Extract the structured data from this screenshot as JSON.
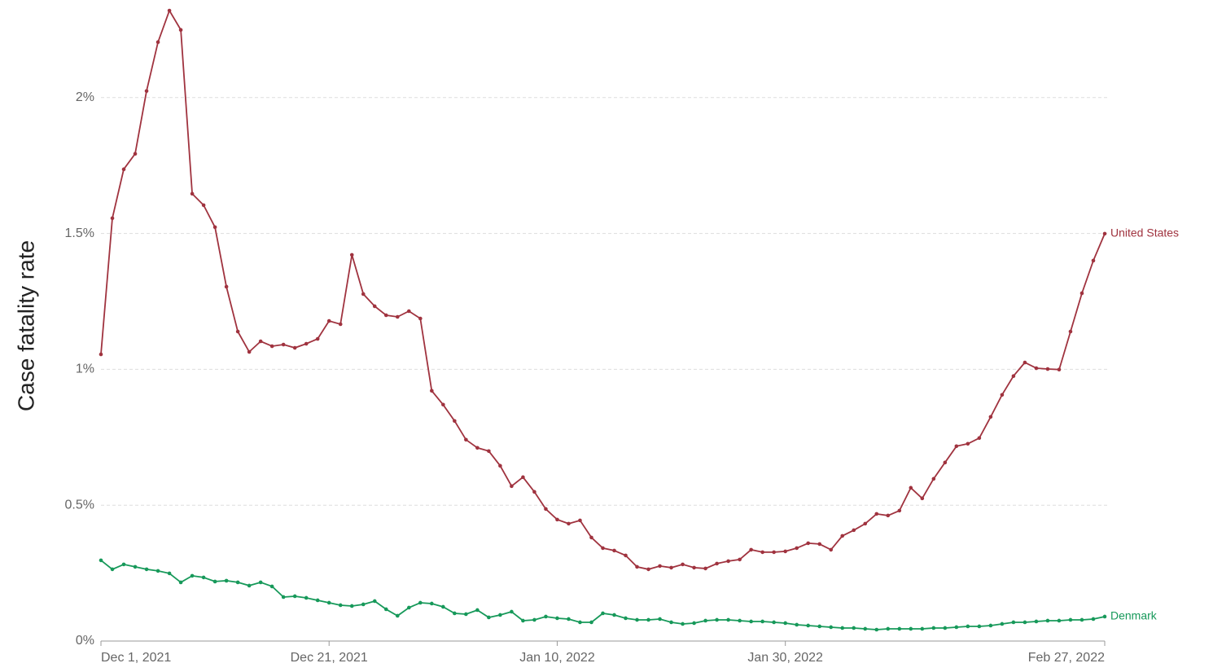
{
  "chart_data": {
    "type": "line",
    "y_label": "Case fatality rate",
    "x": [
      "2021-12-01",
      "2021-12-02",
      "2021-12-03",
      "2021-12-04",
      "2021-12-05",
      "2021-12-06",
      "2021-12-07",
      "2021-12-08",
      "2021-12-09",
      "2021-12-10",
      "2021-12-11",
      "2021-12-12",
      "2021-12-13",
      "2021-12-14",
      "2021-12-15",
      "2021-12-16",
      "2021-12-17",
      "2021-12-18",
      "2021-12-19",
      "2021-12-20",
      "2021-12-21",
      "2021-12-22",
      "2021-12-23",
      "2021-12-24",
      "2021-12-25",
      "2021-12-26",
      "2021-12-27",
      "2021-12-28",
      "2021-12-29",
      "2021-12-30",
      "2021-12-31",
      "2022-01-01",
      "2022-01-02",
      "2022-01-03",
      "2022-01-04",
      "2022-01-05",
      "2022-01-06",
      "2022-01-07",
      "2022-01-08",
      "2022-01-09",
      "2022-01-10",
      "2022-01-11",
      "2022-01-12",
      "2022-01-13",
      "2022-01-14",
      "2022-01-15",
      "2022-01-16",
      "2022-01-17",
      "2022-01-18",
      "2022-01-19",
      "2022-01-20",
      "2022-01-21",
      "2022-01-22",
      "2022-01-23",
      "2022-01-24",
      "2022-01-25",
      "2022-01-26",
      "2022-01-27",
      "2022-01-28",
      "2022-01-29",
      "2022-01-30",
      "2022-01-31",
      "2022-02-01",
      "2022-02-02",
      "2022-02-03",
      "2022-02-04",
      "2022-02-05",
      "2022-02-06",
      "2022-02-07",
      "2022-02-08",
      "2022-02-09",
      "2022-02-10",
      "2022-02-11",
      "2022-02-12",
      "2022-02-13",
      "2022-02-14",
      "2022-02-15",
      "2022-02-16",
      "2022-02-17",
      "2022-02-18",
      "2022-02-19",
      "2022-02-20",
      "2022-02-21",
      "2022-02-22",
      "2022-02-23",
      "2022-02-24",
      "2022-02-25",
      "2022-02-26",
      "2022-02-27"
    ],
    "xlim": [
      "2021-12-01",
      "2022-02-27"
    ],
    "xticks": [
      {
        "value": "2021-12-01",
        "label": "Dec 1, 2021"
      },
      {
        "value": "2021-12-21",
        "label": "Dec 21, 2021"
      },
      {
        "value": "2022-01-10",
        "label": "Jan 10, 2022"
      },
      {
        "value": "2022-01-30",
        "label": "Jan 30, 2022"
      },
      {
        "value": "2022-02-27",
        "label": "Feb 27, 2022"
      }
    ],
    "ylim": [
      0,
      2.35
    ],
    "yticks": [
      {
        "value": 0,
        "label": "0%"
      },
      {
        "value": 0.5,
        "label": "0.5%"
      },
      {
        "value": 1,
        "label": "1%"
      },
      {
        "value": 1.5,
        "label": "1.5%"
      },
      {
        "value": 2,
        "label": "2%"
      }
    ],
    "grid": true,
    "series": [
      {
        "name": "United States",
        "color": "#a0333f",
        "values": [
          1.055,
          1.556,
          1.736,
          1.793,
          2.024,
          2.204,
          2.32,
          2.249,
          1.646,
          1.604,
          1.523,
          1.304,
          1.139,
          1.064,
          1.103,
          1.085,
          1.091,
          1.079,
          1.094,
          1.112,
          1.178,
          1.166,
          1.421,
          1.277,
          1.232,
          1.199,
          1.193,
          1.214,
          1.187,
          0.921,
          0.87,
          0.81,
          0.741,
          0.711,
          0.699,
          0.645,
          0.57,
          0.603,
          0.549,
          0.486,
          0.447,
          0.432,
          0.444,
          0.381,
          0.342,
          0.333,
          0.315,
          0.273,
          0.264,
          0.276,
          0.27,
          0.282,
          0.27,
          0.267,
          0.285,
          0.294,
          0.3,
          0.336,
          0.327,
          0.327,
          0.33,
          0.342,
          0.36,
          0.357,
          0.336,
          0.387,
          0.408,
          0.432,
          0.468,
          0.462,
          0.48,
          0.564,
          0.525,
          0.597,
          0.657,
          0.717,
          0.726,
          0.747,
          0.825,
          0.906,
          0.975,
          1.025,
          1.004,
          1.001,
          0.999,
          1.139,
          1.28,
          1.4,
          1.499
        ]
      },
      {
        "name": "Denmark",
        "color": "#17995a",
        "values": [
          0.297,
          0.264,
          0.282,
          0.273,
          0.264,
          0.258,
          0.249,
          0.216,
          0.24,
          0.234,
          0.219,
          0.222,
          0.216,
          0.204,
          0.216,
          0.201,
          0.162,
          0.165,
          0.159,
          0.15,
          0.141,
          0.132,
          0.129,
          0.135,
          0.147,
          0.117,
          0.093,
          0.123,
          0.141,
          0.138,
          0.126,
          0.102,
          0.099,
          0.114,
          0.087,
          0.096,
          0.108,
          0.075,
          0.078,
          0.09,
          0.084,
          0.081,
          0.069,
          0.069,
          0.102,
          0.096,
          0.084,
          0.078,
          0.078,
          0.081,
          0.069,
          0.063,
          0.066,
          0.075,
          0.078,
          0.078,
          0.075,
          0.072,
          0.072,
          0.069,
          0.066,
          0.06,
          0.057,
          0.054,
          0.051,
          0.048,
          0.048,
          0.045,
          0.042,
          0.045,
          0.045,
          0.045,
          0.045,
          0.048,
          0.048,
          0.051,
          0.054,
          0.054,
          0.057,
          0.063,
          0.069,
          0.069,
          0.072,
          0.075,
          0.075,
          0.078,
          0.078,
          0.081,
          0.09
        ]
      }
    ]
  }
}
